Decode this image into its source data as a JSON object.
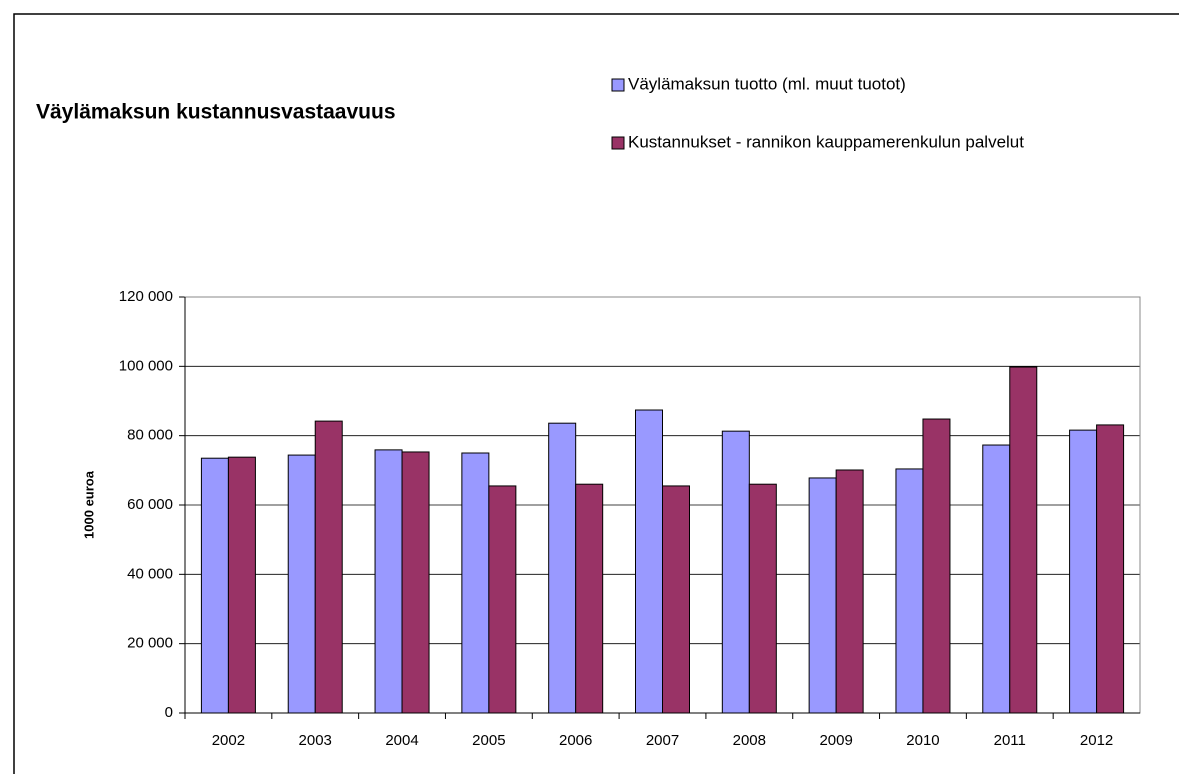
{
  "chart_data": {
    "type": "bar",
    "title": "Väylämaksun kustannusvastaavuus",
    "y_label": "1000 euroa",
    "categories": [
      "2002",
      "2003",
      "2004",
      "2005",
      "2006",
      "2007",
      "2008",
      "2009",
      "2010",
      "2011",
      "2012"
    ],
    "series": [
      {
        "name": "Väylämaksun tuotto (ml. muut tuotot)",
        "color": "#9999ff",
        "values": [
          73500,
          74400,
          75900,
          75000,
          83600,
          87400,
          81300,
          67800,
          70400,
          77300,
          81600
        ]
      },
      {
        "name": "Kustannukset - rannikon kauppamerenkulun palvelut",
        "color": "#993366",
        "values": [
          73800,
          84200,
          75300,
          65500,
          66000,
          65500,
          66000,
          70100,
          84800,
          99800,
          83100
        ]
      }
    ],
    "ylim": [
      0,
      120000
    ],
    "yticks": [
      0,
      {
        "value": 20000,
        "label": "20 000"
      },
      {
        "value": 40000,
        "label": "40 000"
      },
      {
        "value": 60000,
        "label": "60 000"
      },
      {
        "value": 80000,
        "label": "80 000"
      },
      {
        "value": 100000,
        "label": "100 000"
      },
      {
        "value": 120000,
        "label": "120 000"
      }
    ],
    "grid": true,
    "legend": "top-right"
  }
}
